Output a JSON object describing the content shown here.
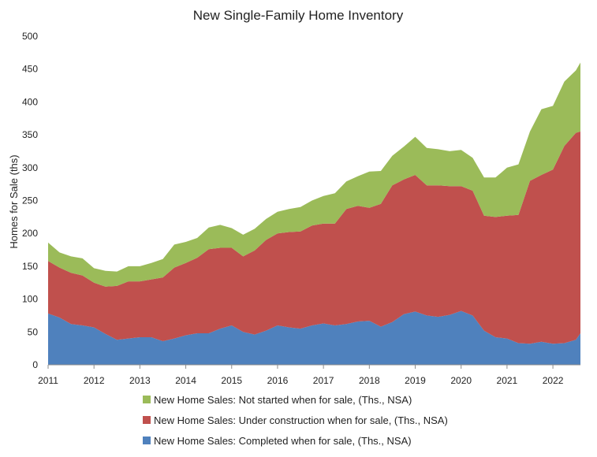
{
  "chart_data": {
    "type": "area",
    "stacked": true,
    "title": "New Single-Family Home Inventory",
    "xlabel": "",
    "ylabel": "Homes for Sale (ths)",
    "xlim": [
      2011,
      2022.6
    ],
    "ylim": [
      0,
      500
    ],
    "yticks": [
      0,
      50,
      100,
      150,
      200,
      250,
      300,
      350,
      400,
      450,
      500
    ],
    "xticks": [
      "2011",
      "2012",
      "2013",
      "2014",
      "2015",
      "2016",
      "2017",
      "2018",
      "2019",
      "2020",
      "2021",
      "2022"
    ],
    "grid": false,
    "legend_position": "bottom",
    "x": [
      2011.0,
      2011.25,
      2011.5,
      2011.75,
      2012.0,
      2012.25,
      2012.5,
      2012.75,
      2013.0,
      2013.25,
      2013.5,
      2013.75,
      2014.0,
      2014.25,
      2014.5,
      2014.75,
      2015.0,
      2015.25,
      2015.5,
      2015.75,
      2016.0,
      2016.25,
      2016.5,
      2016.75,
      2017.0,
      2017.25,
      2017.5,
      2017.75,
      2018.0,
      2018.25,
      2018.5,
      2018.75,
      2019.0,
      2019.25,
      2019.5,
      2019.75,
      2020.0,
      2020.25,
      2020.5,
      2020.75,
      2021.0,
      2021.25,
      2021.5,
      2021.75,
      2022.0,
      2022.25,
      2022.5,
      2022.6
    ],
    "series": [
      {
        "name": "New Home Sales: Completed when for sale, (Ths., NSA)",
        "color": "#4f81bd",
        "values": [
          78,
          72,
          62,
          60,
          57,
          47,
          38,
          40,
          42,
          42,
          36,
          40,
          45,
          48,
          48,
          55,
          60,
          50,
          46,
          52,
          60,
          57,
          55,
          60,
          63,
          60,
          62,
          66,
          67,
          58,
          65,
          77,
          81,
          75,
          73,
          76,
          82,
          75,
          52,
          42,
          40,
          33,
          32,
          35,
          32,
          33,
          38,
          48
        ]
      },
      {
        "name": "New Home Sales: Under construction when for sale, (Ths., NSA)",
        "color": "#c0504d",
        "values": [
          80,
          76,
          78,
          76,
          68,
          72,
          82,
          87,
          85,
          88,
          97,
          108,
          110,
          115,
          128,
          123,
          118,
          115,
          128,
          138,
          140,
          145,
          148,
          152,
          152,
          155,
          175,
          176,
          172,
          187,
          208,
          205,
          208,
          198,
          200,
          196,
          190,
          190,
          175,
          183,
          187,
          195,
          248,
          254,
          265,
          300,
          315,
          307
        ]
      },
      {
        "name": "New Home Sales: Not started when for sale, (Ths., NSA)",
        "color": "#9bbb59",
        "values": [
          28,
          23,
          25,
          26,
          22,
          24,
          22,
          23,
          23,
          25,
          28,
          35,
          32,
          30,
          33,
          35,
          30,
          33,
          33,
          32,
          33,
          35,
          37,
          38,
          42,
          46,
          42,
          45,
          55,
          50,
          45,
          50,
          58,
          57,
          55,
          53,
          55,
          50,
          58,
          60,
          73,
          77,
          75,
          100,
          97,
          98,
          95,
          105
        ]
      }
    ],
    "legend_order": [
      2,
      1,
      0
    ]
  }
}
